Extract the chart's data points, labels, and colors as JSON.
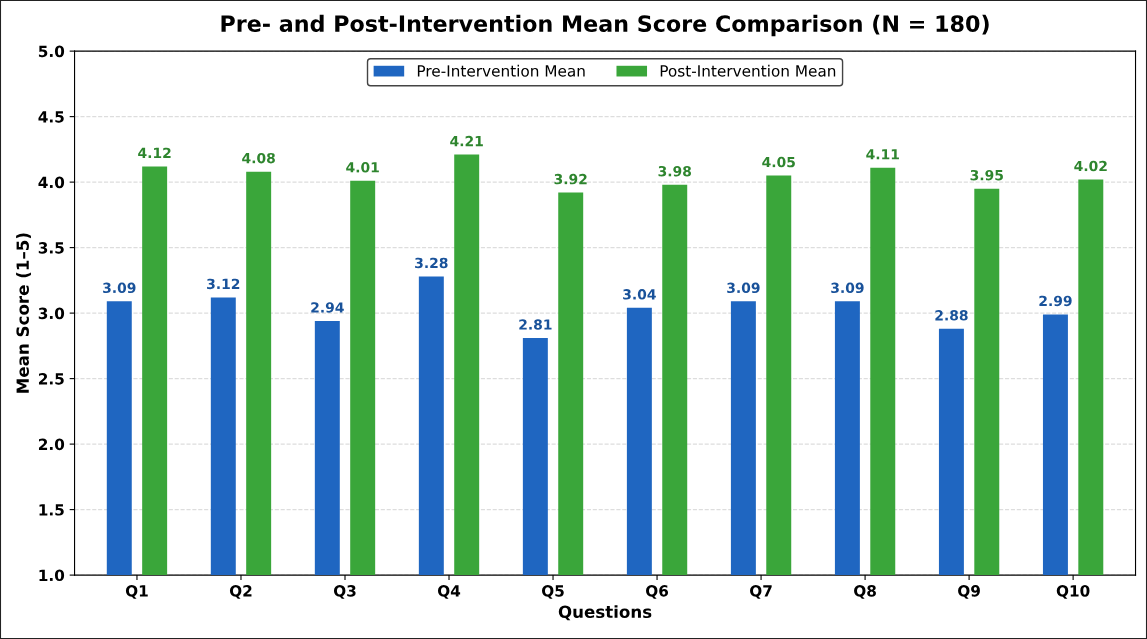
{
  "chart_data": {
    "type": "bar",
    "title": "Pre- and Post-Intervention Mean Score Comparison (N = 180)",
    "xlabel": "Questions",
    "ylabel": "Mean Score (1–5)",
    "categories": [
      "Q1",
      "Q2",
      "Q3",
      "Q4",
      "Q5",
      "Q6",
      "Q7",
      "Q8",
      "Q9",
      "Q10"
    ],
    "series": [
      {
        "name": "Pre-Intervention Mean",
        "color": "#1f66c1",
        "values": [
          3.09,
          3.12,
          2.94,
          3.28,
          2.81,
          3.04,
          3.09,
          3.09,
          2.88,
          2.99
        ]
      },
      {
        "name": "Post-Intervention Mean",
        "color": "#3aa63a",
        "values": [
          4.12,
          4.08,
          4.01,
          4.21,
          3.92,
          3.98,
          4.05,
          4.11,
          3.95,
          4.02
        ]
      }
    ],
    "ylim": [
      1,
      5
    ],
    "yticks": [
      {
        "value": 1,
        "label": "1.0"
      },
      {
        "value": 1.5,
        "label": "1.5"
      },
      {
        "value": 2,
        "label": "2.0"
      },
      {
        "value": 2.5,
        "label": "2.5"
      },
      {
        "value": 3,
        "label": "3.0"
      },
      {
        "value": 3.5,
        "label": "3.5"
      },
      {
        "value": 4,
        "label": "4.0"
      },
      {
        "value": 4.5,
        "label": "4.5"
      },
      {
        "value": 5,
        "label": "5.0"
      }
    ],
    "grid": "y",
    "legend": "top",
    "data_labels": true
  }
}
